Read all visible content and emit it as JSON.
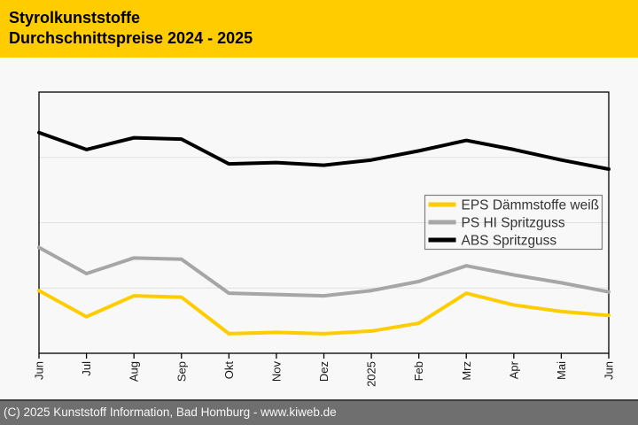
{
  "header": {
    "title_line1": "Styrolkunststoffe",
    "title_line2": "Durchschnittspreise 2024 - 2025",
    "bg_color": "#FFCC00",
    "text_color": "#000000"
  },
  "chart_data": {
    "type": "line",
    "title": "Styrolkunststoffe",
    "subtitle": "Durchschnittspreise 2024 - 2025",
    "categories": [
      "Jun",
      "Jul",
      "Aug",
      "Sep",
      "Okt",
      "Nov",
      "Dez",
      "2025",
      "Feb",
      "Mrz",
      "Apr",
      "Mai",
      "Jun"
    ],
    "series": [
      {
        "name": "EPS Dämmstoffe weiß",
        "color": "#FFCC00",
        "values": [
          24,
          14,
          22,
          21.5,
          7.5,
          8,
          7.5,
          8.5,
          11.5,
          23,
          18.5,
          16,
          14.5
        ]
      },
      {
        "name": "PS HI Spritzguss",
        "color": "#A6A6A6",
        "values": [
          40.5,
          30.5,
          36.5,
          36,
          23,
          22.5,
          22,
          24,
          27.5,
          33.5,
          30,
          27,
          23.5
        ]
      },
      {
        "name": "ABS Spritzguss",
        "color": "#000000",
        "values": [
          84.5,
          78,
          82.5,
          82,
          72.5,
          73,
          72,
          74,
          77.5,
          81.5,
          78,
          74,
          70.5
        ]
      }
    ],
    "xlabel": "",
    "ylabel": "",
    "ylim": [
      0,
      100
    ],
    "y_axis_note": "y-axis has no tick labels in the image; values are estimated as percent of plot height (0 = bottom axis, 100 = top border), gridlines at 25/50/75",
    "grid": "3 faint horizontal gridlines at quarter heights",
    "legend_position": "inside right, vertically centered, transparent background",
    "line_width": 4,
    "colors": {
      "plot_border": "#000000",
      "gridline": "#E0E0E0",
      "background": "#F8F8F8",
      "tick_label": "#1A1A1A",
      "legend_border": "#7F7F7F",
      "legend_text": "#333333"
    }
  },
  "footer": {
    "text": "(C) 2025 Kunststoff Information, Bad Homburg - www.kiweb.de",
    "bg_color": "#6F6F6F",
    "border_color": "#3F3F3F",
    "text_color": "#F5F5F5"
  }
}
